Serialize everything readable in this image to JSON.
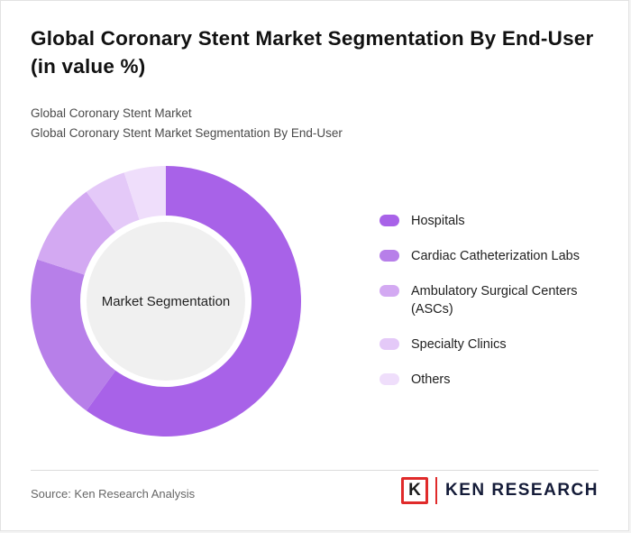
{
  "title": "Global Coronary Stent Market Segmentation By End-User (in value %)",
  "subtitle_lines": {
    "line1": "Global Coronary Stent Market",
    "line2": "Global Coronary Stent Market Segmentation By End-User"
  },
  "chart_data": {
    "type": "pie",
    "subtype": "donut",
    "title": "Global Coronary Stent Market Segmentation By End-User (in value %)",
    "center_label": "Market Segmentation",
    "labels": [
      "Hospitals",
      "Cardiac Catheterization Labs",
      "Ambulatory Surgical Centers (ASCs)",
      "Specialty Clinics",
      "Others"
    ],
    "values": [
      60,
      20,
      10,
      5,
      5
    ],
    "colors": [
      "#a862e8",
      "#b77fe9",
      "#d3a9f2",
      "#e4c9f8",
      "#efdefb"
    ],
    "legend_position": "right",
    "start_angle_deg": 0,
    "direction": "clockwise",
    "data_labels_shown": false
  },
  "footer": {
    "source": "Source: Ken Research Analysis",
    "logo_letter": "K",
    "logo_text": "KEN RESEARCH",
    "logo_accent_color": "#e02b2b",
    "logo_text_color": "#141b38"
  }
}
